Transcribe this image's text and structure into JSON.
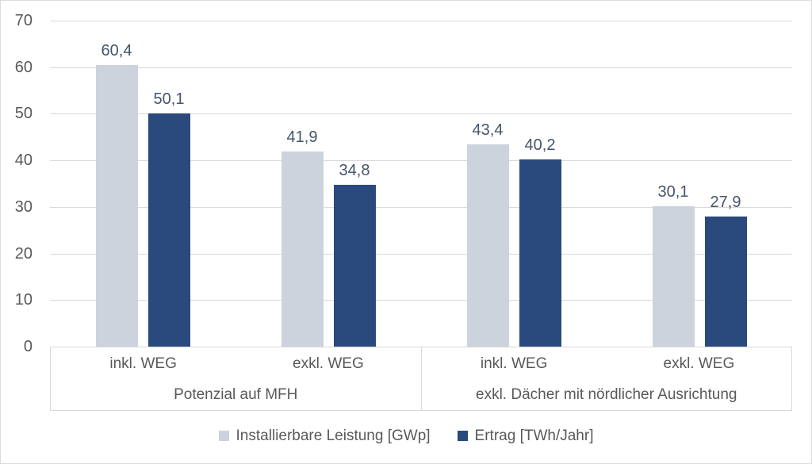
{
  "frame": {
    "background": "#ffffff",
    "border_color": "#dcdcdc"
  },
  "chart_data": {
    "type": "bar",
    "title": "",
    "xlabel": "",
    "ylabel": "",
    "grid": true,
    "legend_position": "bottom",
    "y_axis": {
      "min": 0,
      "max": 70,
      "step": 10,
      "tick_labels": [
        "0",
        "10",
        "20",
        "30",
        "40",
        "50",
        "60",
        "70"
      ]
    },
    "groups": [
      {
        "label": "Potenzial auf MFH",
        "categories": [
          "inkl. WEG",
          "exkl. WEG"
        ]
      },
      {
        "label": "exkl. Dächer mit nördlicher Ausrichtung",
        "categories": [
          "inkl. WEG",
          "exkl. WEG"
        ]
      }
    ],
    "series": [
      {
        "name": "Installierbare Leistung [GWp]",
        "color": "#cdd3dd",
        "values": [
          60.4,
          41.9,
          43.4,
          30.1
        ],
        "value_labels": [
          "60,4",
          "41,9",
          "43,4",
          "30,1"
        ]
      },
      {
        "name": "Ertrag [TWh/Jahr]",
        "color": "#2a4a7d",
        "values": [
          50.1,
          34.8,
          40.2,
          27.9
        ],
        "value_labels": [
          "50,1",
          "34,8",
          "40,2",
          "27,9"
        ]
      }
    ],
    "colors": {
      "grid": "#d9d9d9",
      "axis_text": "#595959",
      "value_label_text": "#44546a"
    }
  }
}
